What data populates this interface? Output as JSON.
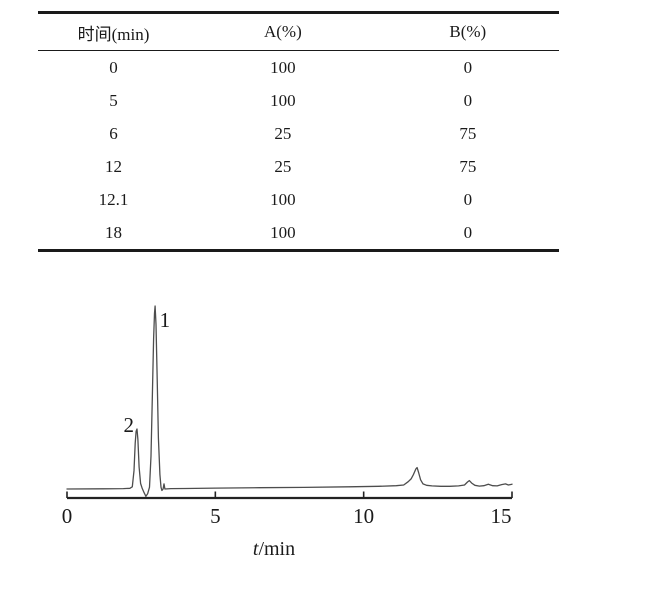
{
  "table": {
    "columns": [
      "时间(min)",
      "A(%)",
      "B(%)"
    ],
    "rows": [
      [
        "0",
        "100",
        "0"
      ],
      [
        "5",
        "100",
        "0"
      ],
      [
        "6",
        "25",
        "75"
      ],
      [
        "12",
        "25",
        "75"
      ],
      [
        "12.1",
        "100",
        "0"
      ],
      [
        "18",
        "100",
        "0"
      ]
    ]
  },
  "chart_data": {
    "type": "line",
    "title": "",
    "xlabel": "t/min",
    "xlabel_variable": "t",
    "xlabel_unit": "min",
    "ylabel": "",
    "xlim": [
      0,
      15
    ],
    "x_tick_values": [
      0,
      5,
      10,
      15
    ],
    "x_tick_labels": [
      "0",
      "5",
      "10",
      "15"
    ],
    "grid": false,
    "peaks": [
      {
        "label": "1",
        "t_min": 2.97,
        "rel_height": 1.0,
        "label_side": "right"
      },
      {
        "label": "2",
        "t_min": 2.36,
        "rel_height": 0.33,
        "label_side": "left"
      },
      {
        "label": null,
        "t_min": 11.8,
        "rel_height": 0.12,
        "label_side": null
      },
      {
        "label": null,
        "t_min": 13.6,
        "rel_height": 0.05,
        "label_side": null
      }
    ],
    "trace": [
      [
        0,
        0
      ],
      [
        1.2,
        0.001
      ],
      [
        1.9,
        0.002
      ],
      [
        2.12,
        0.004
      ],
      [
        2.2,
        0.012
      ],
      [
        2.26,
        0.1
      ],
      [
        2.3,
        0.25
      ],
      [
        2.33,
        0.315
      ],
      [
        2.36,
        0.328
      ],
      [
        2.39,
        0.27
      ],
      [
        2.43,
        0.12
      ],
      [
        2.48,
        0.03
      ],
      [
        2.53,
        0.005
      ],
      [
        2.6,
        -0.02
      ],
      [
        2.66,
        -0.04
      ],
      [
        2.72,
        -0.025
      ],
      [
        2.78,
        0.01
      ],
      [
        2.83,
        0.18
      ],
      [
        2.88,
        0.52
      ],
      [
        2.92,
        0.82
      ],
      [
        2.95,
        0.96
      ],
      [
        2.97,
        1.0
      ],
      [
        3.0,
        0.9
      ],
      [
        3.04,
        0.6
      ],
      [
        3.08,
        0.28
      ],
      [
        3.13,
        0.08
      ],
      [
        3.17,
        0.01
      ],
      [
        3.2,
        -0.008
      ],
      [
        3.24,
        0
      ],
      [
        3.27,
        0.028
      ],
      [
        3.3,
        0
      ],
      [
        3.5,
        0.002
      ],
      [
        4.0,
        0.003
      ],
      [
        5.0,
        0.005
      ],
      [
        6.5,
        0.007
      ],
      [
        8.0,
        0.009
      ],
      [
        9.5,
        0.012
      ],
      [
        10.5,
        0.015
      ],
      [
        11.1,
        0.018
      ],
      [
        11.35,
        0.022
      ],
      [
        11.5,
        0.04
      ],
      [
        11.6,
        0.055
      ],
      [
        11.68,
        0.08
      ],
      [
        11.76,
        0.11
      ],
      [
        11.8,
        0.117
      ],
      [
        11.85,
        0.09
      ],
      [
        11.92,
        0.05
      ],
      [
        12.0,
        0.028
      ],
      [
        12.12,
        0.02
      ],
      [
        12.3,
        0.017
      ],
      [
        12.6,
        0.015
      ],
      [
        12.9,
        0.015
      ],
      [
        13.2,
        0.017
      ],
      [
        13.4,
        0.022
      ],
      [
        13.5,
        0.038
      ],
      [
        13.56,
        0.046
      ],
      [
        13.64,
        0.032
      ],
      [
        13.75,
        0.02
      ],
      [
        13.9,
        0.016
      ],
      [
        14.05,
        0.018
      ],
      [
        14.2,
        0.026
      ],
      [
        14.35,
        0.018
      ],
      [
        14.5,
        0.017
      ],
      [
        14.65,
        0.024
      ],
      [
        14.78,
        0.028
      ],
      [
        14.88,
        0.022
      ],
      [
        15.0,
        0.026
      ]
    ],
    "colors": {
      "trace": "#4d4d4d",
      "axis": "#222222",
      "text": "#1a1a1a"
    }
  }
}
